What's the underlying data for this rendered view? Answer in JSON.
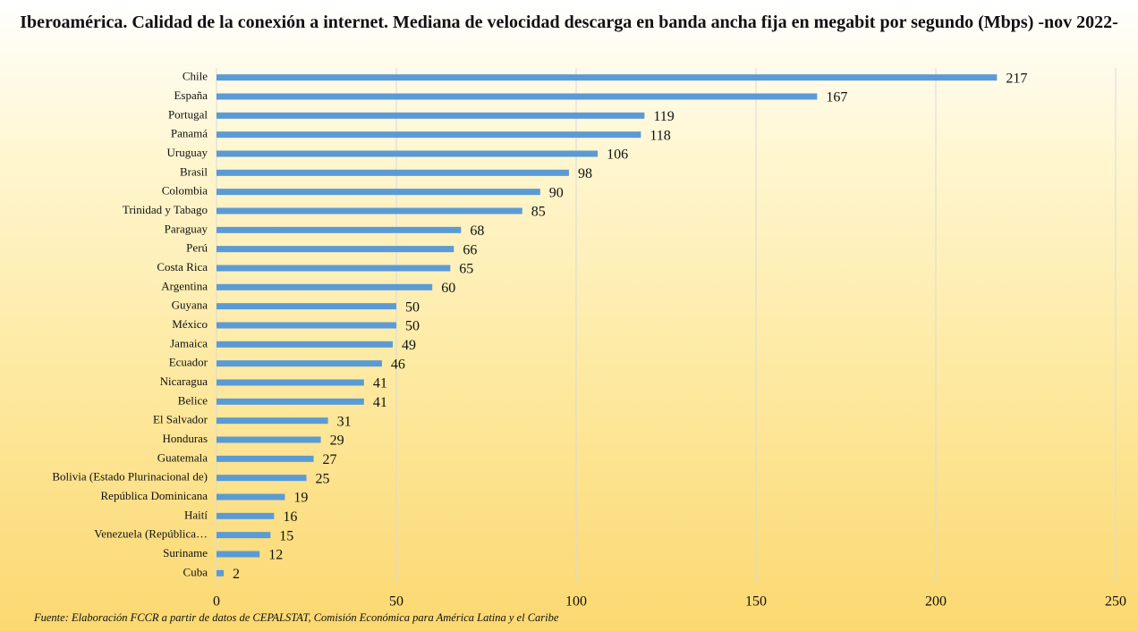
{
  "chart_data": {
    "type": "barh",
    "title": "Iberoamérica. Calidad de la conexión a internet. Mediana de velocidad descarga en banda ancha fija en megabit por segundo (Mbps) -nov 2022-",
    "source": "Fuente: Elaboración FCCR a partir de datos de CEPALSTAT, Comisión Económica para América Latina y el Caribe",
    "categories": [
      "Chile",
      "España",
      "Portugal",
      "Panamá",
      "Uruguay",
      "Brasil",
      "Colombia",
      "Trinidad y Tabago",
      "Paraguay",
      "Perú",
      "Costa Rica",
      "Argentina",
      "Guyana",
      "México",
      "Jamaica",
      "Ecuador",
      "Nicaragua",
      "Belice",
      "El Salvador",
      "Honduras",
      "Guatemala",
      "Bolivia (Estado Plurinacional de)",
      "República Dominicana",
      "Haití",
      "Venezuela (República…",
      "Suriname",
      "Cuba"
    ],
    "values": [
      217,
      167,
      119,
      118,
      106,
      98,
      90,
      85,
      68,
      66,
      65,
      60,
      50,
      50,
      49,
      46,
      41,
      41,
      31,
      29,
      27,
      25,
      19,
      16,
      15,
      12,
      2
    ],
    "color": "#5b9bd5",
    "xlim": [
      0,
      250
    ],
    "xticks": [
      0,
      50,
      100,
      150,
      200,
      250
    ],
    "grid": true
  }
}
